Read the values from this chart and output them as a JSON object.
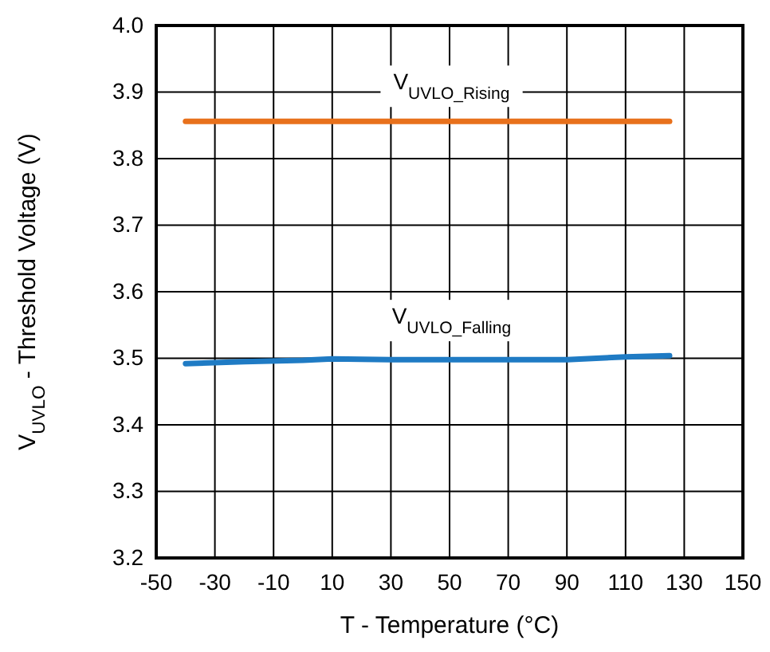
{
  "chart_data": {
    "type": "line",
    "xlabel": "T - Temperature (°C)",
    "ylabel": "V$_{UVLO}$ - Threshold Voltage (V)",
    "xlim": [
      -50,
      150
    ],
    "xticks": [
      -50,
      -30,
      -10,
      10,
      30,
      50,
      70,
      90,
      110,
      130,
      150
    ],
    "ylim": [
      3.2,
      4.0
    ],
    "yticks": [
      {
        "value": 3.2,
        "label": "3.2"
      },
      3.3,
      3.4,
      3.5,
      3.6,
      3.7,
      3.8,
      3.9,
      {
        "value": 4.0,
        "label": "4.0"
      }
    ],
    "grid": true,
    "marker": "none",
    "line_style": "solid",
    "series": [
      {
        "name": "V$_{UVLO_Rising}$",
        "color": "#e8711c",
        "x": [
          -40,
          125
        ],
        "values": [
          3.856,
          3.856
        ]
      },
      {
        "name": "V$_{UVLO_Falling}$",
        "color": "#1f7bc4",
        "x": [
          -40,
          -20,
          0,
          10,
          30,
          50,
          70,
          90,
          110,
          125
        ],
        "values": [
          3.492,
          3.495,
          3.497,
          3.499,
          3.498,
          3.498,
          3.498,
          3.498,
          3.502,
          3.504
        ]
      }
    ]
  }
}
